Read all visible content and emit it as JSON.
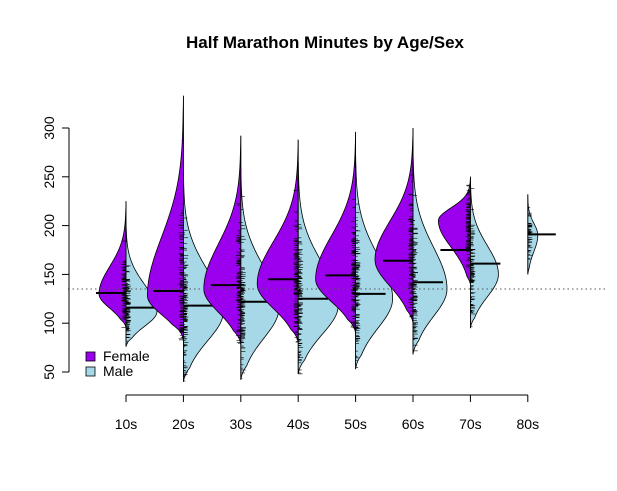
{
  "chart_data": {
    "type": "beanplot",
    "title": "Half Marathon Minutes by Age/Sex",
    "xlabel": "",
    "ylabel": "",
    "categories": [
      "10s",
      "20s",
      "30s",
      "40s",
      "50s",
      "60s",
      "70s",
      "80s"
    ],
    "ylim": [
      50,
      300
    ],
    "yticks": [
      50,
      100,
      150,
      200,
      250,
      300
    ],
    "reference_line": 135,
    "legend": {
      "position": "bottom-left",
      "entries": [
        {
          "label": "Female",
          "color": "#9B00EE"
        },
        {
          "label": "Male",
          "color": "#A6D8E8"
        }
      ]
    },
    "series": [
      {
        "name": "Female",
        "color": "#9B00EE",
        "side": "left",
        "beans": [
          {
            "category": "10s",
            "min": 95,
            "max": 225,
            "mode": 130,
            "median": 131,
            "spread": 27
          },
          {
            "category": "20s",
            "min": 82,
            "max": 333,
            "mode": 128,
            "median": 133,
            "spread": 36
          },
          {
            "category": "30s",
            "min": 78,
            "max": 292,
            "mode": 135,
            "median": 139,
            "spread": 37
          },
          {
            "category": "40s",
            "min": 80,
            "max": 288,
            "mode": 140,
            "median": 145,
            "spread": 41
          },
          {
            "category": "50s",
            "min": 90,
            "max": 296,
            "mode": 145,
            "median": 149,
            "spread": 40
          },
          {
            "category": "60s",
            "min": 100,
            "max": 300,
            "mode": 165,
            "median": 164,
            "spread": 38
          },
          {
            "category": "70s",
            "min": 140,
            "max": 250,
            "mode": 205,
            "median": 175,
            "spread": 32
          },
          {
            "category": "80s",
            "min": null,
            "max": null,
            "mode": null,
            "median": null,
            "spread": 0
          }
        ]
      },
      {
        "name": "Male",
        "color": "#A6D8E8",
        "side": "right",
        "beans": [
          {
            "category": "10s",
            "min": 76,
            "max": 205,
            "mode": 112,
            "median": 116,
            "spread": 31
          },
          {
            "category": "20s",
            "min": 40,
            "max": 255,
            "mode": 112,
            "median": 118,
            "spread": 40
          },
          {
            "category": "30s",
            "min": 42,
            "max": 260,
            "mode": 115,
            "median": 122,
            "spread": 38
          },
          {
            "category": "40s",
            "min": 48,
            "max": 265,
            "mode": 118,
            "median": 125,
            "spread": 40
          },
          {
            "category": "50s",
            "min": 53,
            "max": 275,
            "mode": 125,
            "median": 130,
            "spread": 37
          },
          {
            "category": "60s",
            "min": 68,
            "max": 280,
            "mode": 135,
            "median": 142,
            "spread": 34
          },
          {
            "category": "70s",
            "min": 95,
            "max": 250,
            "mode": 150,
            "median": 161,
            "spread": 28
          },
          {
            "category": "80s",
            "min": 150,
            "max": 232,
            "mode": 190,
            "median": 191,
            "spread": 10
          }
        ]
      }
    ]
  }
}
